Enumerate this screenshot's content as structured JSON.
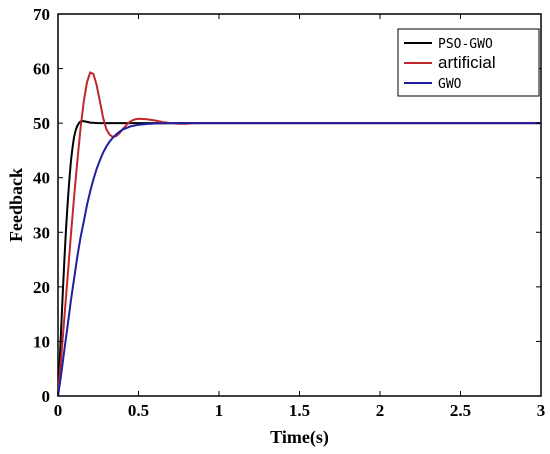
{
  "chart_data": {
    "type": "line",
    "title": "",
    "xlabel": "Time(s)",
    "ylabel": "Feedback",
    "xlim": [
      0,
      3
    ],
    "ylim": [
      0,
      70
    ],
    "x_ticks": [
      0,
      0.5,
      1,
      1.5,
      2,
      2.5,
      3
    ],
    "x_tick_labels": [
      "0",
      "0.5",
      "1",
      "1.5",
      "2",
      "2.5",
      "3"
    ],
    "y_ticks": [
      0,
      10,
      20,
      30,
      40,
      50,
      60,
      70
    ],
    "y_tick_labels": [
      "0",
      "10",
      "20",
      "30",
      "40",
      "50",
      "60",
      "70"
    ],
    "grid": false,
    "legend_position": "top-right",
    "series": [
      {
        "name": "PSO-GWO",
        "color": "#000000",
        "x": [
          0,
          0.01,
          0.02,
          0.03,
          0.04,
          0.05,
          0.06,
          0.07,
          0.08,
          0.09,
          0.1,
          0.11,
          0.12,
          0.13,
          0.14,
          0.15,
          0.17,
          0.2,
          0.25,
          0.3,
          0.4,
          0.5,
          3
        ],
        "y": [
          0,
          6,
          12.5,
          19,
          25,
          30.5,
          35.5,
          39.5,
          43,
          45.5,
          47.5,
          48.7,
          49.5,
          50,
          50.3,
          50.4,
          50.3,
          50.1,
          50,
          50,
          50,
          50,
          50
        ]
      },
      {
        "name": "artificial",
        "color": "#c0272d",
        "x": [
          0,
          0.02,
          0.04,
          0.06,
          0.08,
          0.1,
          0.12,
          0.14,
          0.16,
          0.18,
          0.2,
          0.22,
          0.24,
          0.26,
          0.28,
          0.3,
          0.32,
          0.34,
          0.36,
          0.38,
          0.4,
          0.42,
          0.44,
          0.46,
          0.48,
          0.5,
          0.55,
          0.6,
          0.65,
          0.7,
          0.75,
          0.8,
          0.85,
          0.9,
          1,
          3
        ],
        "y": [
          0,
          7,
          14.5,
          22,
          29.5,
          36.5,
          43,
          49,
          54,
          57.5,
          59.3,
          59,
          57,
          54,
          51,
          48.9,
          47.9,
          47.5,
          47.6,
          48.1,
          48.8,
          49.5,
          50.1,
          50.5,
          50.7,
          50.8,
          50.7,
          50.5,
          50.2,
          50,
          49.9,
          49.9,
          50,
          50,
          50,
          50
        ]
      },
      {
        "name": "GWO",
        "color": "#1f1fa0",
        "x": [
          0,
          0.02,
          0.04,
          0.06,
          0.08,
          0.1,
          0.12,
          0.14,
          0.16,
          0.18,
          0.2,
          0.22,
          0.24,
          0.26,
          0.28,
          0.3,
          0.32,
          0.34,
          0.36,
          0.38,
          0.4,
          0.45,
          0.5,
          0.55,
          0.6,
          0.7,
          0.8,
          3
        ],
        "y": [
          0,
          4,
          8.5,
          13,
          17.5,
          21.5,
          25.5,
          29,
          32,
          35,
          37.5,
          39.7,
          41.6,
          43.2,
          44.6,
          45.7,
          46.6,
          47.3,
          47.9,
          48.4,
          48.8,
          49.4,
          49.7,
          49.85,
          49.93,
          49.98,
          50,
          50
        ]
      }
    ]
  }
}
